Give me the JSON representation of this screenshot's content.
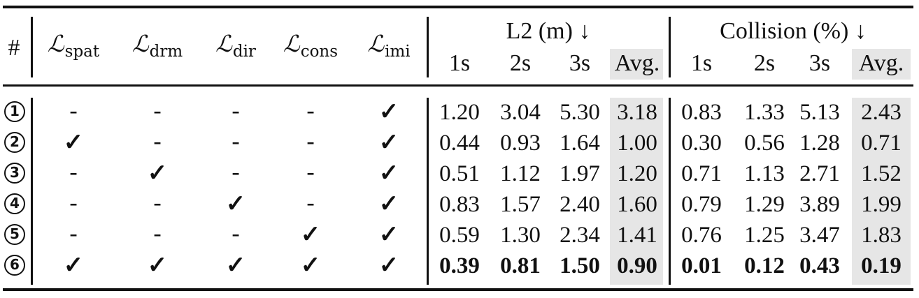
{
  "header": {
    "index": "#",
    "losses": [
      {
        "symbol": "ℒ",
        "sub": "spat"
      },
      {
        "symbol": "ℒ",
        "sub": "drm"
      },
      {
        "symbol": "ℒ",
        "sub": "dir"
      },
      {
        "symbol": "ℒ",
        "sub": "cons"
      },
      {
        "symbol": "ℒ",
        "sub": "imi"
      }
    ],
    "l2_group": "L2 (m) ↓",
    "collision_group": "Collision (%) ↓",
    "l2_cols": [
      "1s",
      "2s",
      "3s",
      "Avg."
    ],
    "collision_cols": [
      "1s",
      "2s",
      "3s",
      "Avg."
    ]
  },
  "rows": [
    {
      "idx": "1",
      "marks": [
        "-",
        "-",
        "-",
        "-",
        "✓"
      ],
      "l2": [
        "1.20",
        "3.04",
        "5.30",
        "3.18"
      ],
      "col": [
        "0.83",
        "1.33",
        "5.13",
        "2.43"
      ],
      "bold": false
    },
    {
      "idx": "2",
      "marks": [
        "✓",
        "-",
        "-",
        "-",
        "✓"
      ],
      "l2": [
        "0.44",
        "0.93",
        "1.64",
        "1.00"
      ],
      "col": [
        "0.30",
        "0.56",
        "1.28",
        "0.71"
      ],
      "bold": false
    },
    {
      "idx": "3",
      "marks": [
        "-",
        "✓",
        "-",
        "-",
        "✓"
      ],
      "l2": [
        "0.51",
        "1.12",
        "1.97",
        "1.20"
      ],
      "col": [
        "0.71",
        "1.13",
        "2.71",
        "1.52"
      ],
      "bold": false
    },
    {
      "idx": "4",
      "marks": [
        "-",
        "-",
        "✓",
        "-",
        "✓"
      ],
      "l2": [
        "0.83",
        "1.57",
        "2.40",
        "1.60"
      ],
      "col": [
        "0.79",
        "1.29",
        "3.89",
        "1.99"
      ],
      "bold": false
    },
    {
      "idx": "5",
      "marks": [
        "-",
        "-",
        "-",
        "✓",
        "✓"
      ],
      "l2": [
        "0.59",
        "1.30",
        "2.34",
        "1.41"
      ],
      "col": [
        "0.76",
        "1.25",
        "3.47",
        "1.83"
      ],
      "bold": false
    },
    {
      "idx": "6",
      "marks": [
        "✓",
        "✓",
        "✓",
        "✓",
        "✓"
      ],
      "l2": [
        "0.39",
        "0.81",
        "1.50",
        "0.90"
      ],
      "col": [
        "0.01",
        "0.12",
        "0.43",
        "0.19"
      ],
      "bold": true
    }
  ]
}
